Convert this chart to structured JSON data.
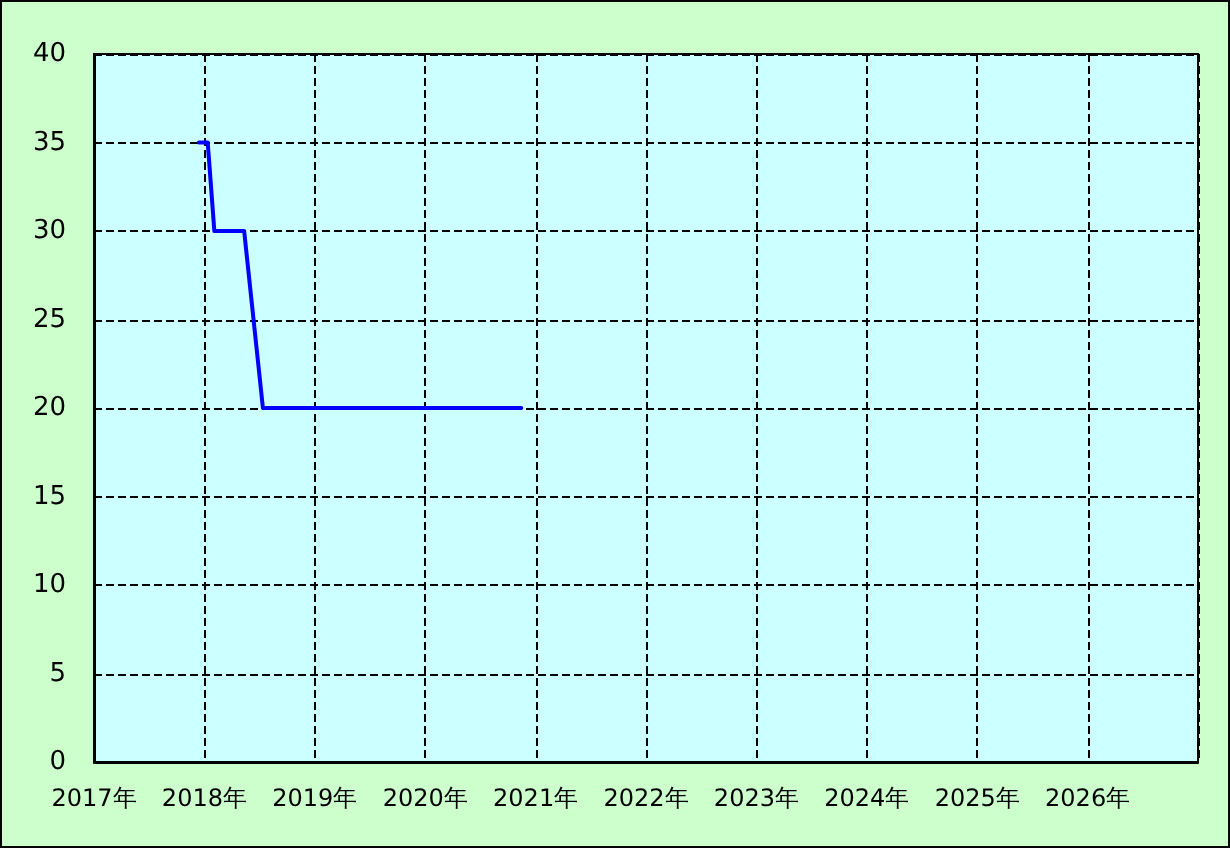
{
  "chart_data": {
    "type": "line",
    "x": [
      2017.95,
      2018.03,
      2018.09,
      2018.36,
      2018.53,
      2020.87
    ],
    "series": [
      {
        "color": "#0000ff",
        "values": [
          35,
          35,
          30,
          30,
          20,
          20
        ]
      }
    ],
    "xlim": [
      2017,
      2027
    ],
    "xticks": [
      {
        "value": 2017,
        "label": "2017年"
      },
      {
        "value": 2018,
        "label": "2018年"
      },
      {
        "value": 2019,
        "label": "2019年"
      },
      {
        "value": 2020,
        "label": "2020年"
      },
      {
        "value": 2021,
        "label": "2021年"
      },
      {
        "value": 2022,
        "label": "2022年"
      },
      {
        "value": 2023,
        "label": "2023年"
      },
      {
        "value": 2024,
        "label": "2024年"
      },
      {
        "value": 2025,
        "label": "2025年"
      },
      {
        "value": 2026,
        "label": "2026年"
      }
    ],
    "ylim": [
      0,
      40
    ],
    "yticks": [
      0,
      5,
      10,
      15,
      20,
      25,
      30,
      35,
      40
    ],
    "grid": true,
    "marker": "none",
    "line_style": "solid"
  }
}
